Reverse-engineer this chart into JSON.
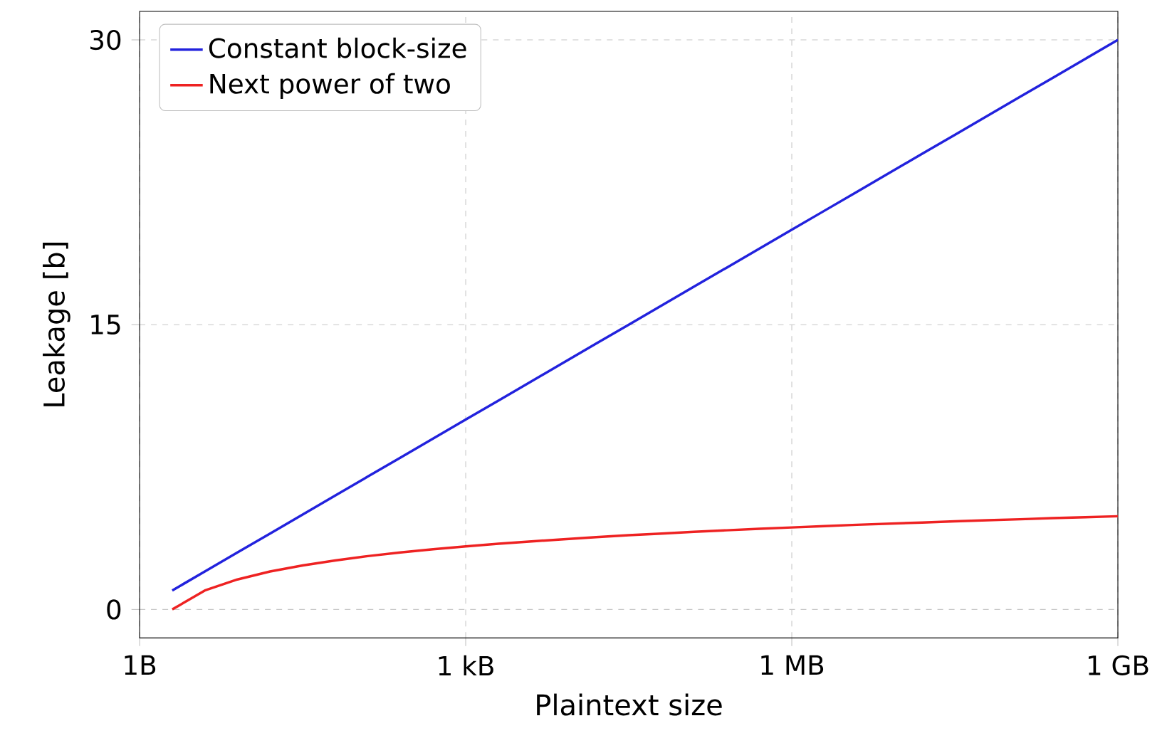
{
  "chart_data": {
    "type": "line",
    "xlabel": "Plaintext size",
    "ylabel": "Leakage [b]",
    "categories": [
      "1B",
      null,
      null,
      null,
      null,
      null,
      null,
      null,
      null,
      null,
      "1 kB",
      null,
      null,
      null,
      null,
      null,
      null,
      null,
      null,
      null,
      "1 MB",
      null,
      null,
      null,
      null,
      null,
      null,
      null,
      null,
      null,
      "1 GB"
    ],
    "series": [
      {
        "name": "Constant block-size",
        "color": "#2222dd",
        "values": [
          null,
          1,
          2,
          3,
          4,
          5,
          6,
          7,
          8,
          9,
          10,
          11,
          12,
          13,
          14,
          15,
          16,
          17,
          18,
          19,
          20,
          21,
          22,
          23,
          24,
          25,
          26,
          27,
          28,
          29,
          30
        ]
      },
      {
        "name": "Next power of two",
        "color": "#ee2222",
        "values": [
          null,
          0,
          1,
          1.58,
          2,
          2.32,
          2.58,
          2.81,
          3,
          3.17,
          3.32,
          3.46,
          3.58,
          3.7,
          3.81,
          3.91,
          4,
          4.09,
          4.17,
          4.25,
          4.32,
          4.39,
          4.46,
          4.52,
          4.58,
          4.64,
          4.7,
          4.75,
          4.81,
          4.86,
          4.91
        ]
      }
    ],
    "ylim": [
      -1.5,
      31.5
    ],
    "yticks": [
      0,
      15,
      30
    ],
    "grid": true,
    "legend": "top left",
    "marker": "none",
    "line_style": "solid"
  }
}
